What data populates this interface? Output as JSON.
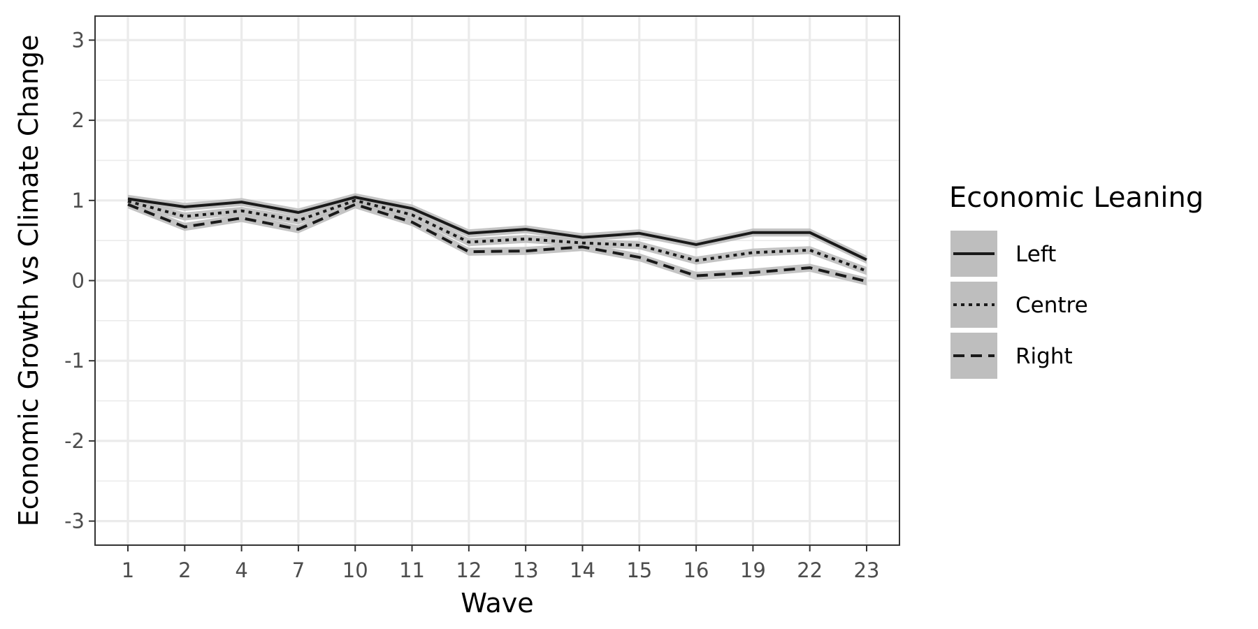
{
  "chart_data": {
    "type": "line",
    "title": "",
    "xlabel": "Wave",
    "ylabel": "Economic Growth vs Climate Change",
    "categories": [
      "1",
      "2",
      "4",
      "7",
      "10",
      "11",
      "12",
      "13",
      "14",
      "15",
      "16",
      "19",
      "22",
      "23"
    ],
    "yticks": [
      3,
      2,
      1,
      0,
      -1,
      -2,
      -3
    ],
    "ytick_labels": [
      "3",
      "2",
      "1",
      "0",
      "-1",
      "-2",
      "-3"
    ],
    "ylim": [
      -3.3,
      3.3
    ],
    "grid": true,
    "legend": {
      "title": "Economic Leaning",
      "position": "right"
    },
    "series": [
      {
        "name": "Left",
        "style": "solid",
        "values": [
          1.02,
          0.92,
          0.98,
          0.85,
          1.04,
          0.9,
          0.59,
          0.64,
          0.54,
          0.59,
          0.45,
          0.6,
          0.6,
          0.26
        ]
      },
      {
        "name": "Centre",
        "style": "dotted",
        "values": [
          0.99,
          0.8,
          0.87,
          0.75,
          1.0,
          0.82,
          0.48,
          0.52,
          0.47,
          0.44,
          0.25,
          0.35,
          0.38,
          0.12
        ]
      },
      {
        "name": "Right",
        "style": "dashed",
        "values": [
          0.95,
          0.67,
          0.78,
          0.64,
          0.95,
          0.73,
          0.36,
          0.37,
          0.42,
          0.29,
          0.06,
          0.1,
          0.16,
          -0.01
        ]
      }
    ],
    "colors": {
      "line": "#1a1a1a",
      "ribbon": "#bebebe",
      "grid": "#ebebeb",
      "panel_border": "#333333",
      "legend_key": "#bebebe"
    }
  }
}
